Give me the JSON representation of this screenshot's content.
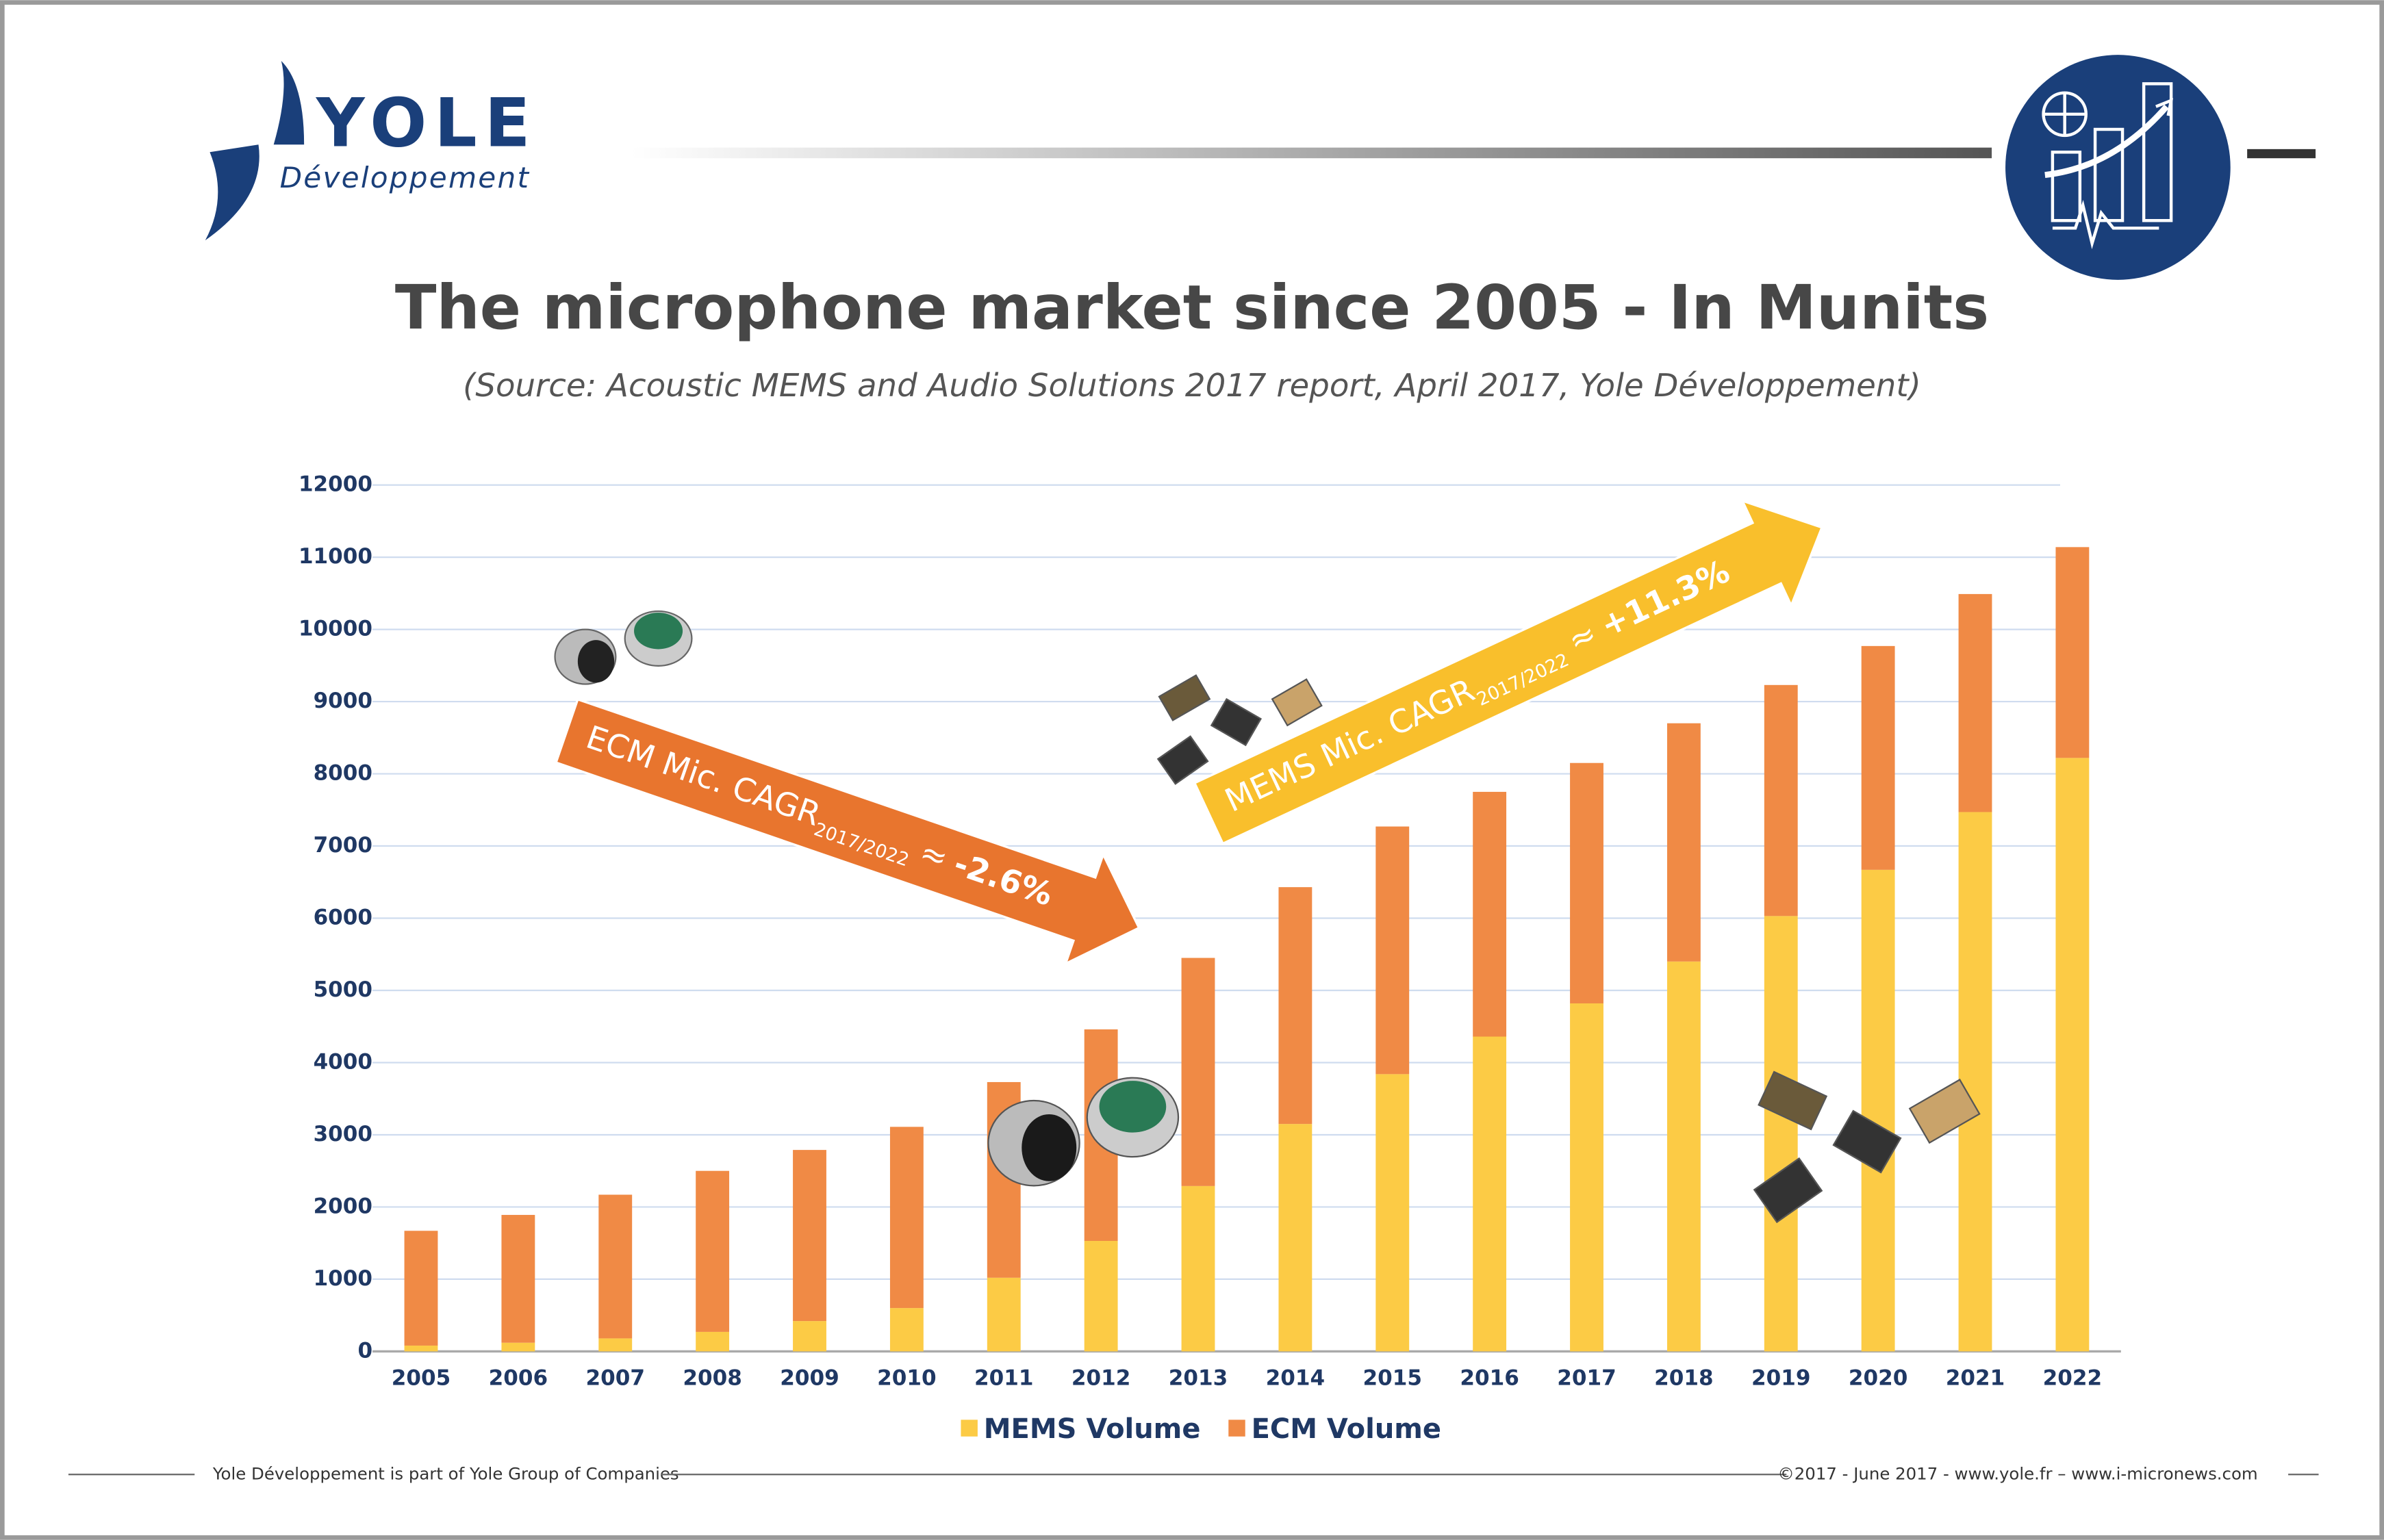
{
  "header": {
    "logo": "YOLE",
    "logo_sub": "Développement"
  },
  "chart_data": {
    "type": "bar",
    "stacked": true,
    "title": "The microphone market since 2005 - In Munits",
    "subtitle": "(Source: Acoustic MEMS and Audio Solutions 2017 report, April 2017, Yole Développement)",
    "categories": [
      "2005",
      "2006",
      "2007",
      "2008",
      "2009",
      "2010",
      "2011",
      "2012",
      "2013",
      "2014",
      "2015",
      "2016",
      "2017",
      "2018",
      "2019",
      "2020",
      "2021",
      "2022"
    ],
    "series": [
      {
        "name": "MEMS Volume",
        "color": "#fccb45",
        "values": [
          80,
          120,
          180,
          270,
          420,
          600,
          1020,
          1530,
          2290,
          3150,
          3840,
          4360,
          4820,
          5400,
          6030,
          6670,
          7470,
          8220
        ]
      },
      {
        "name": "ECM Volume",
        "color": "#f08a45",
        "values": [
          1590,
          1770,
          1990,
          2230,
          2370,
          2510,
          2710,
          2930,
          3160,
          3280,
          3430,
          3390,
          3330,
          3300,
          3200,
          3100,
          3020,
          2920
        ]
      }
    ],
    "ylim": [
      0,
      12000
    ],
    "yticks": [
      0,
      1000,
      2000,
      3000,
      4000,
      5000,
      6000,
      7000,
      8000,
      9000,
      10000,
      11000,
      12000
    ],
    "grid": true,
    "legend": "bottom",
    "annotations": [
      {
        "text": "ECM Mic. CAGR",
        "subscript": "2017/2022",
        "approx": "≈",
        "value": "-2.6%"
      },
      {
        "text": "MEMS Mic. CAGR",
        "subscript": "2017/2022",
        "approx": "≈",
        "value": "+11.3%"
      }
    ]
  },
  "footer": {
    "left": "Yole Développement is part of Yole Group of Companies",
    "right": "©2017 - June 2017 - www.yole.fr – www.i-micronews.com"
  }
}
